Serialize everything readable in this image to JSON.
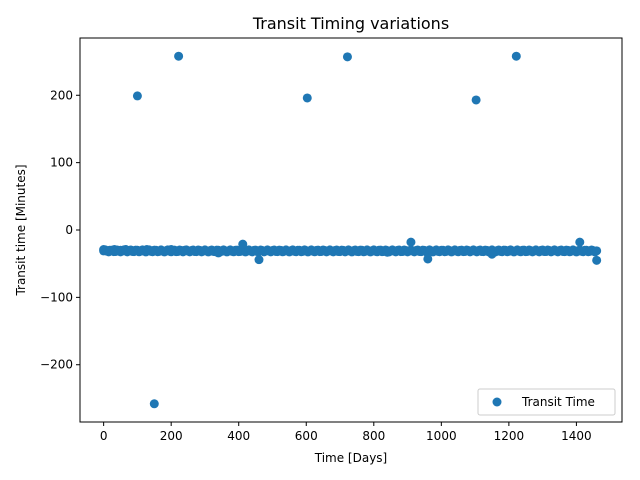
{
  "chart_data": {
    "type": "scatter",
    "title": "Transit Timing variations",
    "xlabel": "Time [Days]",
    "ylabel": "Transit time [Minutes]",
    "xlim": [
      -70,
      1535
    ],
    "ylim": [
      -285,
      285
    ],
    "xticks": [
      0,
      200,
      400,
      600,
      800,
      1000,
      1200,
      1400
    ],
    "xtick_labels": [
      "0",
      "200",
      "400",
      "600",
      "800",
      "1000",
      "1200",
      "1400"
    ],
    "yticks": [
      -200,
      -100,
      0,
      100,
      200
    ],
    "ytick_labels": [
      "−200",
      "−100",
      "0",
      "100",
      "200"
    ],
    "grid": false,
    "legend_position": "lower-right",
    "series": [
      {
        "name": "Transit Time",
        "color": "#1f77b4",
        "baseline": {
          "x_start": 0,
          "x_end": 1460,
          "x_step": 5,
          "y": -31,
          "y_jitter": 1.5
        },
        "points": [
          {
            "x": 0,
            "y": -29
          },
          {
            "x": 18,
            "y": -30
          },
          {
            "x": 32,
            "y": -29
          },
          {
            "x": 50,
            "y": -30
          },
          {
            "x": 65,
            "y": -29
          },
          {
            "x": 82,
            "y": -30
          },
          {
            "x": 100,
            "y": 199
          },
          {
            "x": 100,
            "y": -30
          },
          {
            "x": 112,
            "y": -31
          },
          {
            "x": 128,
            "y": -29
          },
          {
            "x": 150,
            "y": -258
          },
          {
            "x": 150,
            "y": -30
          },
          {
            "x": 168,
            "y": -31
          },
          {
            "x": 188,
            "y": -30
          },
          {
            "x": 200,
            "y": -29
          },
          {
            "x": 222,
            "y": 258
          },
          {
            "x": 240,
            "y": -30
          },
          {
            "x": 300,
            "y": -30
          },
          {
            "x": 340,
            "y": -34
          },
          {
            "x": 412,
            "y": -21
          },
          {
            "x": 460,
            "y": -44
          },
          {
            "x": 603,
            "y": 196
          },
          {
            "x": 722,
            "y": 257
          },
          {
            "x": 840,
            "y": -33
          },
          {
            "x": 910,
            "y": -18
          },
          {
            "x": 960,
            "y": -43
          },
          {
            "x": 1103,
            "y": 193
          },
          {
            "x": 1150,
            "y": -36
          },
          {
            "x": 1222,
            "y": 258
          },
          {
            "x": 1410,
            "y": -18
          },
          {
            "x": 1460,
            "y": -45
          }
        ]
      }
    ]
  }
}
